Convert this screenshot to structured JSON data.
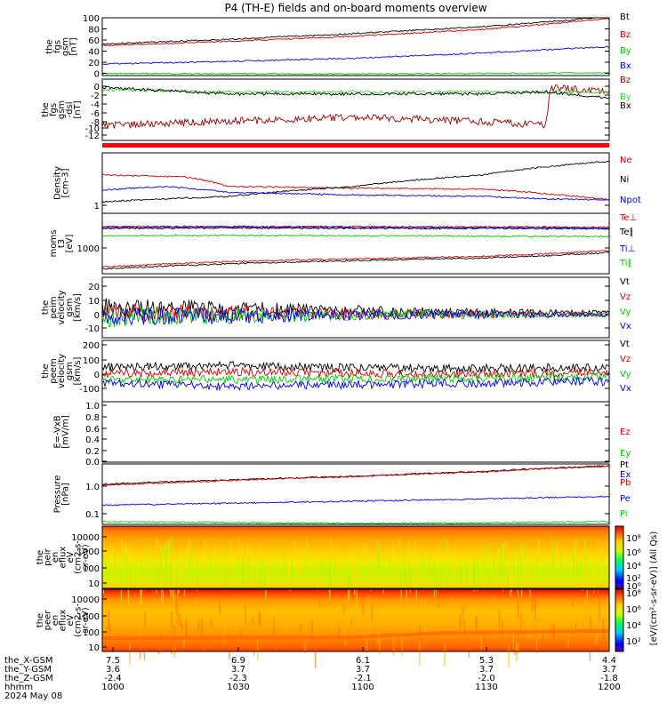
{
  "title": "P4 (TH-E) fields and on-board moments overview",
  "colors": {
    "black": "#000000",
    "red": "#d40000",
    "green": "#00cc00",
    "blue": "#0000ee",
    "darkred": "#990000",
    "lime": "#33dd33",
    "cyan": "#00aaff"
  },
  "chart_data": {
    "type": "line",
    "x_axis": {
      "rows": [
        {
          "name": "the_X-GSM",
          "values": [
            "7.5",
            "6.9",
            "6.1",
            "5.3",
            "4.4"
          ]
        },
        {
          "name": "the_Y-GSM",
          "values": [
            "3.6",
            "3.7",
            "3.7",
            "3.7",
            "3.7"
          ]
        },
        {
          "name": "the_Z-GSM",
          "values": [
            "-2.4",
            "-2.3",
            "-2.1",
            "-2.0",
            "-1.8"
          ]
        },
        {
          "name": "hhmm",
          "values": [
            "1000",
            "1030",
            "1100",
            "1130",
            "1200"
          ]
        }
      ],
      "date": "2024 May 08",
      "range": [
        "10:00",
        "12:00"
      ]
    },
    "panels": [
      {
        "id": "fgs",
        "ylabel": [
          "the",
          "fgs",
          "gsm",
          "[nT]"
        ],
        "yticks": [
          "100",
          "80",
          "60",
          "40",
          "20",
          "0"
        ],
        "ylim": [
          -5,
          105
        ],
        "legend": [
          {
            "label": "Bt",
            "color": "#000000"
          },
          {
            "label": "Bz",
            "color": "#d40000"
          },
          {
            "label": "By",
            "color": "#00cc00"
          },
          {
            "label": "Bx",
            "color": "#0000ee"
          }
        ],
        "series": [
          {
            "name": "Bt",
            "color": "#000000",
            "x": [
              0,
              30,
              60,
              90,
              110,
              120
            ],
            "y": [
              55,
              64,
              75,
              88,
              100,
              108
            ]
          },
          {
            "name": "Bz",
            "color": "#d40000",
            "x": [
              0,
              30,
              60,
              90,
              110,
              120
            ],
            "y": [
              52,
              60,
              70,
              83,
              96,
              104
            ]
          },
          {
            "name": "By",
            "color": "#00cc00",
            "x": [
              0,
              60,
              120
            ],
            "y": [
              -1,
              -2,
              0
            ]
          },
          {
            "name": "Bx",
            "color": "#0000ee",
            "x": [
              0,
              30,
              60,
              90,
              120
            ],
            "y": [
              17,
              22,
              28,
              38,
              50
            ]
          }
        ]
      },
      {
        "id": "fgs-dsl",
        "ylabel": [
          "the",
          "fgs",
          "gsm",
          "-dsl",
          "[nT]"
        ],
        "yticks": [
          "0",
          "-2",
          "-4",
          "-6",
          "-8",
          "-10",
          "-12"
        ],
        "ylim": [
          -13.5,
          1
        ],
        "legend": [
          {
            "label": "Bz",
            "color": "#990000"
          },
          {
            "label": "By",
            "color": "#33dd33"
          },
          {
            "label": "Bx",
            "color": "#000000"
          }
        ],
        "series": [
          {
            "name": "Bz",
            "color": "#990000",
            "x": [
              0,
              30,
              60,
              90,
              105,
              106,
              120
            ],
            "y": [
              -10,
              -9,
              -8,
              -9,
              -10,
              -1,
              -2
            ]
          },
          {
            "name": "By",
            "color": "#33dd33",
            "x": [
              0,
              30,
              60,
              90,
              120
            ],
            "y": [
              -1.5,
              -2,
              -2,
              -2,
              -2
            ]
          },
          {
            "name": "Bx",
            "color": "#000000",
            "x": [
              0,
              30,
              60,
              90,
              105,
              120
            ],
            "y": [
              -1,
              -2.5,
              -2.5,
              -2.5,
              -2,
              -3.5
            ]
          }
        ]
      },
      {
        "id": "density",
        "ylabel": [
          "Density",
          "[cm-3]"
        ],
        "yticks": [
          "1"
        ],
        "ylim": [
          0.4,
          15
        ],
        "log": true,
        "legend": [
          {
            "label": "Ne",
            "color": "#d40000"
          },
          {
            "label": "Ni",
            "color": "#000000"
          },
          {
            "label": "Npot",
            "color": "#0000ee"
          }
        ],
        "series": [
          {
            "name": "Ne",
            "color": "#d40000",
            "x": [
              0,
              20,
              30,
              60,
              90,
              105,
              120
            ],
            "y": [
              4,
              3.5,
              2,
              1.8,
              1.7,
              1.3,
              0.9
            ]
          },
          {
            "name": "Ni",
            "color": "#000000",
            "x": [
              0,
              20,
              30,
              60,
              90,
              120
            ],
            "y": [
              0.8,
              1.0,
              1.1,
              2.0,
              4.0,
              9
            ]
          },
          {
            "name": "Npot",
            "color": "#0000ee",
            "x": [
              0,
              15,
              30,
              60,
              90,
              105,
              120
            ],
            "y": [
              1.6,
              2.0,
              1.4,
              1.2,
              1.1,
              0.95,
              0.9
            ]
          }
        ]
      },
      {
        "id": "moms-t3",
        "ylabel": [
          "moms",
          "t3",
          "[eV]"
        ],
        "yticks": [
          "1000"
        ],
        "ylim": [
          300,
          20000
        ],
        "log": true,
        "legend": [
          {
            "label": "Te⊥",
            "color": "#d40000"
          },
          {
            "label": "Te∥",
            "color": "#000000"
          },
          {
            "label": "Ti⊥",
            "color": "#0000ee"
          },
          {
            "label": "Ti∥",
            "color": "#00cc00"
          }
        ],
        "series": [
          {
            "name": "Te⊥",
            "color": "#d40000",
            "x": [
              0,
              30,
              60,
              90,
              120
            ],
            "y": [
              8000,
              8000,
              8000,
              7800,
              7600
            ]
          },
          {
            "name": "Te∥",
            "color": "#000000",
            "x": [
              0,
              30,
              60,
              90,
              120
            ],
            "y": [
              7000,
              7200,
              7000,
              7000,
              6800
            ]
          },
          {
            "name": "Ti⊥",
            "color": "#0000ee",
            "x": [
              0,
              30,
              60,
              90,
              120
            ],
            "y": [
              7500,
              7800,
              7500,
              7400,
              7300
            ]
          },
          {
            "name": "Ti∥",
            "color": "#00cc00",
            "x": [
              0,
              30,
              60,
              90,
              120
            ],
            "y": [
              4200,
              4300,
              4200,
              4100,
              4000
            ]
          },
          {
            "name": "Ti-low",
            "color": "#d40000",
            "x": [
              0,
              30,
              60,
              90,
              105,
              120
            ],
            "y": [
              480,
              700,
              850,
              1000,
              1200,
              1500
            ]
          },
          {
            "name": "Te-low",
            "color": "#000000",
            "x": [
              0,
              30,
              60,
              90,
              105,
              120
            ],
            "y": [
              420,
              600,
              750,
              900,
              1050,
              1300
            ]
          }
        ]
      },
      {
        "id": "peim-velocity",
        "ylabel": [
          "the",
          "peim",
          "velocity",
          "gsm",
          "[km/s]"
        ],
        "yticks": [
          "20",
          "10",
          "0",
          "-10"
        ],
        "ylim": [
          -17,
          28
        ],
        "legend": [
          {
            "label": "Vt",
            "color": "#000000"
          },
          {
            "label": "Vz",
            "color": "#d40000"
          },
          {
            "label": "Vy",
            "color": "#00cc00"
          },
          {
            "label": "Vx",
            "color": "#0000ee"
          }
        ],
        "series": [
          {
            "name": "Vt",
            "color": "#000000",
            "x": [
              0,
              30,
              60,
              90,
              120
            ],
            "y": [
              6,
              5,
              3,
              2,
              2
            ]
          },
          {
            "name": "Vz",
            "color": "#d40000",
            "x": [
              0,
              30,
              60,
              90,
              120
            ],
            "y": [
              2,
              1,
              0.5,
              0.5,
              0.5
            ]
          },
          {
            "name": "Vy",
            "color": "#00cc00",
            "x": [
              0,
              30,
              60,
              90,
              120
            ],
            "y": [
              -2,
              -1,
              0,
              0,
              0
            ]
          },
          {
            "name": "Vx",
            "color": "#0000ee",
            "x": [
              0,
              30,
              60,
              90,
              120
            ],
            "y": [
              -1,
              -1,
              0,
              0,
              0
            ]
          }
        ]
      },
      {
        "id": "peem-velocity",
        "ylabel": [
          "the",
          "peem",
          "velocity",
          "gsm",
          "[km/s]"
        ],
        "yticks": [
          "200",
          "100",
          "0",
          "-100"
        ],
        "ylim": [
          -150,
          240
        ],
        "legend": [
          {
            "label": "Vt",
            "color": "#000000"
          },
          {
            "label": "Vz",
            "color": "#d40000"
          },
          {
            "label": "Vy",
            "color": "#00cc00"
          },
          {
            "label": "Vx",
            "color": "#0000ee"
          }
        ],
        "series": [
          {
            "name": "Vt",
            "color": "#000000",
            "x": [
              0,
              30,
              60,
              90,
              120
            ],
            "y": [
              70,
              80,
              65,
              60,
              70
            ]
          },
          {
            "name": "Vz",
            "color": "#d40000",
            "x": [
              0,
              30,
              60,
              90,
              120
            ],
            "y": [
              30,
              40,
              30,
              25,
              35
            ]
          },
          {
            "name": "Vy",
            "color": "#00cc00",
            "x": [
              0,
              30,
              60,
              90,
              120
            ],
            "y": [
              -10,
              -10,
              -5,
              0,
              5
            ]
          },
          {
            "name": "Vx",
            "color": "#0000ee",
            "x": [
              0,
              30,
              60,
              90,
              120
            ],
            "y": [
              -30,
              -50,
              -40,
              -30,
              -20
            ]
          }
        ]
      },
      {
        "id": "efield",
        "ylabel": [
          "E=-VxB",
          "[mV/m]"
        ],
        "yticks": [
          "1.0",
          "0.8",
          "0.6",
          "0.4",
          "0.2",
          "0.0"
        ],
        "ylim": [
          0,
          1
        ],
        "legend": [
          {
            "label": "Ez",
            "color": "#d40000"
          },
          {
            "label": "Ey",
            "color": "#00cc00"
          },
          {
            "label": "Ex",
            "color": "#0000ee"
          }
        ],
        "series": []
      },
      {
        "id": "pressure",
        "ylabel": [
          "Pressure",
          "[nPa]"
        ],
        "yticks": [
          "1.0",
          "0.1"
        ],
        "ylim": [
          0.07,
          5
        ],
        "log": true,
        "legend": [
          {
            "label": "Pt",
            "color": "#000000"
          },
          {
            "label": "Pb",
            "color": "#d40000"
          },
          {
            "label": "Pe",
            "color": "#0000ee"
          },
          {
            "label": "Pi",
            "color": "#00cc00"
          }
        ],
        "series": [
          {
            "name": "Pt",
            "color": "#000000",
            "x": [
              0,
              30,
              60,
              90,
              120
            ],
            "y": [
              1.2,
              1.6,
              2.1,
              2.9,
              4.4
            ]
          },
          {
            "name": "Pb",
            "color": "#d40000",
            "x": [
              0,
              30,
              60,
              90,
              120
            ],
            "y": [
              1.1,
              1.55,
              2.05,
              2.85,
              4.3
            ]
          },
          {
            "name": "Pe",
            "color": "#0000ee",
            "x": [
              0,
              30,
              60,
              90,
              120
            ],
            "y": [
              0.27,
              0.31,
              0.36,
              0.42,
              0.5
            ]
          },
          {
            "name": "Pi",
            "color": "#00cc00",
            "x": [
              0,
              30,
              60,
              90,
              120
            ],
            "y": [
              0.085,
              0.08,
              0.075,
              0.078,
              0.085
            ]
          }
        ]
      }
    ],
    "spectrograms": [
      {
        "id": "peir",
        "ylabel": [
          "the",
          "peir",
          "en",
          "eflux",
          "eV",
          "(cm2-s-",
          "sr-eV)"
        ],
        "yticks": [
          "10000",
          "1000",
          "100",
          "10"
        ]
      },
      {
        "id": "peer",
        "ylabel": [
          "the",
          "peer",
          "en",
          "eflux",
          "eV",
          "(cm2-s-",
          "sr-eV)"
        ],
        "yticks": [
          "10000",
          "1000",
          "100",
          "10"
        ]
      }
    ],
    "colorbars": [
      {
        "ticks": [
          "10⁸",
          "10⁶",
          "10⁴",
          "10²",
          "10⁰"
        ]
      },
      {
        "ticks": [
          "10⁸",
          "10⁶",
          "10⁴",
          "10²"
        ]
      }
    ],
    "colorbar_label": "[eV/(cm²-s-sr-eV)] (All Qs)"
  }
}
